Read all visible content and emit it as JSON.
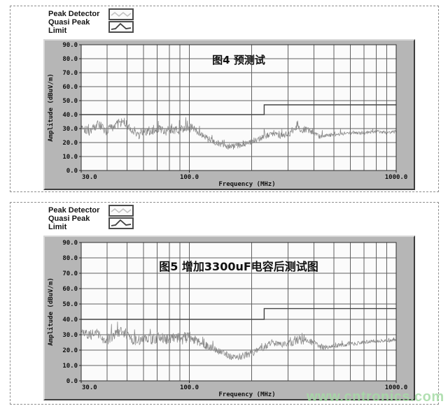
{
  "watermark": {
    "text": "www.cntronics.com",
    "color": "#a5dba5"
  },
  "panels": [
    {
      "legend": {
        "peak_detector_label": "Peak Detector",
        "quasi_peak_limit_label": "Quasi Peak Limit"
      }
    },
    {
      "legend": {
        "peak_detector_label": "Peak Detector",
        "quasi_peak_limit_label": "Quasi Peak Limit"
      }
    }
  ],
  "chart_data": [
    {
      "type": "line",
      "title": "图4 预测试",
      "xlabel": "Frequency (MHz)",
      "ylabel": "Amplitude (dBuV/m)",
      "xscale": "log",
      "xlim": [
        30,
        1000
      ],
      "ylim": [
        0,
        90
      ],
      "grid": true,
      "xticks": [
        30,
        100,
        1000
      ],
      "xtick_labels": [
        "30.0",
        "100.0",
        "1000.0"
      ],
      "ytick_labels": [
        "0.0",
        "10.0",
        "20.0",
        "30.0",
        "40.0",
        "50.0",
        "60.0",
        "70.0",
        "80.0",
        "90.0"
      ],
      "grid_x_values": [
        40,
        50,
        60,
        70,
        80,
        90,
        100,
        200,
        300,
        400,
        500,
        600,
        700,
        800,
        900
      ],
      "grid_y_values": [
        10,
        20,
        30,
        40,
        50,
        60,
        70,
        80
      ],
      "series": [
        {
          "name": "Peak Detector",
          "style": "noisy",
          "seed": 101,
          "envelope": [
            [
              30,
              32
            ],
            [
              33,
              28
            ],
            [
              36,
              33
            ],
            [
              40,
              28
            ],
            [
              44,
              33
            ],
            [
              48,
              35
            ],
            [
              52,
              30
            ],
            [
              56,
              24
            ],
            [
              60,
              29
            ],
            [
              65,
              28
            ],
            [
              70,
              31
            ],
            [
              76,
              28
            ],
            [
              82,
              30
            ],
            [
              88,
              29
            ],
            [
              95,
              31
            ],
            [
              100,
              31
            ],
            [
              108,
              28
            ],
            [
              118,
              24
            ],
            [
              130,
              21
            ],
            [
              145,
              18
            ],
            [
              158,
              17
            ],
            [
              175,
              18
            ],
            [
              195,
              20
            ],
            [
              210,
              22
            ],
            [
              228,
              24
            ],
            [
              250,
              26
            ],
            [
              275,
              25
            ],
            [
              300,
              26
            ],
            [
              330,
              31
            ],
            [
              365,
              29
            ],
            [
              395,
              27
            ],
            [
              430,
              24
            ],
            [
              470,
              25
            ],
            [
              520,
              26
            ],
            [
              600,
              27
            ],
            [
              700,
              27
            ],
            [
              800,
              28
            ],
            [
              900,
              27
            ],
            [
              1000,
              28
            ]
          ],
          "noise_base": [
            [
              30,
              3.5
            ],
            [
              105,
              3.5
            ],
            [
              118,
              2.5
            ],
            [
              200,
              2.2
            ],
            [
              290,
              2.2
            ],
            [
              320,
              3.2
            ],
            [
              400,
              2.0
            ],
            [
              480,
              1.3
            ],
            [
              1000,
              1.2
            ]
          ],
          "spike_prob": 0.06,
          "spike_amp": 7
        },
        {
          "name": "Quasi Peak Limit",
          "style": "step",
          "points": [
            [
              30,
              40
            ],
            [
              230,
              40
            ],
            [
              230,
              47
            ],
            [
              1000,
              47
            ]
          ]
        }
      ]
    },
    {
      "type": "line",
      "title": "图5 增加3300uF电容后测试图",
      "xlabel": "Frequency (MHz)",
      "ylabel": "Amplitude (dBuV/m)",
      "xscale": "log",
      "xlim": [
        30,
        1000
      ],
      "ylim": [
        0,
        90
      ],
      "grid": true,
      "xticks": [
        30,
        100,
        1000
      ],
      "xtick_labels": [
        "30.0",
        "100.0",
        "1000.0"
      ],
      "ytick_labels": [
        "0.0",
        "10.0",
        "20.0",
        "30.0",
        "40.0",
        "50.0",
        "60.0",
        "70.0",
        "80.0",
        "90.0"
      ],
      "grid_x_values": [
        40,
        50,
        60,
        70,
        80,
        90,
        100,
        200,
        300,
        400,
        500,
        600,
        700,
        800,
        900
      ],
      "grid_y_values": [
        10,
        20,
        30,
        40,
        50,
        60,
        70,
        80
      ],
      "series": [
        {
          "name": "Peak Detector",
          "style": "noisy",
          "seed": 202,
          "envelope": [
            [
              30,
              34
            ],
            [
              32,
              30
            ],
            [
              36,
              30
            ],
            [
              40,
              26
            ],
            [
              44,
              31
            ],
            [
              48,
              32
            ],
            [
              52,
              28
            ],
            [
              56,
              25
            ],
            [
              60,
              28
            ],
            [
              66,
              27
            ],
            [
              72,
              29
            ],
            [
              78,
              27
            ],
            [
              85,
              29
            ],
            [
              92,
              27
            ],
            [
              100,
              29
            ],
            [
              110,
              26
            ],
            [
              120,
              23
            ],
            [
              135,
              20
            ],
            [
              150,
              17
            ],
            [
              165,
              15
            ],
            [
              180,
              16
            ],
            [
              200,
              18
            ],
            [
              215,
              20
            ],
            [
              230,
              22
            ],
            [
              250,
              25
            ],
            [
              275,
              24
            ],
            [
              300,
              24
            ],
            [
              330,
              27
            ],
            [
              365,
              26
            ],
            [
              395,
              25
            ],
            [
              430,
              22
            ],
            [
              470,
              22
            ],
            [
              520,
              23
            ],
            [
              600,
              24
            ],
            [
              700,
              25
            ],
            [
              800,
              26
            ],
            [
              900,
              26
            ],
            [
              1000,
              27
            ]
          ],
          "noise_base": [
            [
              30,
              3.5
            ],
            [
              105,
              3.5
            ],
            [
              118,
              2.5
            ],
            [
              200,
              2.2
            ],
            [
              290,
              2.2
            ],
            [
              320,
              3.2
            ],
            [
              400,
              2.0
            ],
            [
              480,
              1.3
            ],
            [
              1000,
              1.2
            ]
          ],
          "spike_prob": 0.06,
          "spike_amp": 7
        },
        {
          "name": "Quasi Peak Limit",
          "style": "step",
          "points": [
            [
              30,
              40
            ],
            [
              230,
              40
            ],
            [
              230,
              47
            ],
            [
              1000,
              47
            ]
          ]
        }
      ]
    }
  ]
}
